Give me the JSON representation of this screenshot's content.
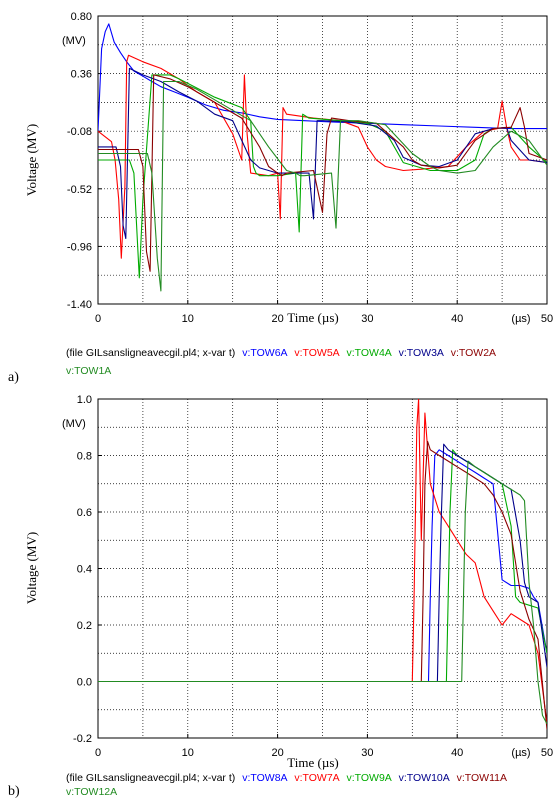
{
  "chart_data": [
    {
      "panel_label": "a)",
      "type": "line",
      "xlabel": "Time (µs)",
      "ylabel": "Voltage (MV)",
      "y_unit": "(MV)",
      "x_unit": "(µs)",
      "xlim": [
        0,
        50
      ],
      "ylim": [
        -1.4,
        0.8
      ],
      "xticks": [
        "0",
        "10",
        "20",
        "30",
        "40",
        "50"
      ],
      "yticks": [
        "0.80",
        "0.36",
        "-0.08",
        "-0.52",
        "-0.96",
        "-1.40"
      ],
      "grid": true,
      "legend_prefix": "(file GILsansligneavecgil.pl4; x-var t)",
      "series": [
        {
          "name": "v:TOW6A",
          "color": "#0000ff",
          "x": [
            0,
            0.4,
            0.8,
            1.2,
            1.8,
            2.5,
            3.2,
            4.0,
            5.0,
            6.0,
            7.0,
            8.5,
            10,
            12,
            14,
            16,
            18,
            20,
            23,
            26,
            30,
            34,
            38,
            42,
            46,
            50
          ],
          "y": [
            -0.08,
            0.55,
            0.68,
            0.74,
            0.6,
            0.52,
            0.45,
            0.38,
            0.34,
            0.3,
            0.26,
            0.22,
            0.18,
            0.12,
            0.08,
            0.06,
            0.03,
            0.01,
            0.0,
            -0.01,
            -0.02,
            -0.03,
            -0.04,
            -0.05,
            -0.06,
            -0.06
          ]
        },
        {
          "name": "v:TOW5A",
          "color": "#ff0000",
          "x": [
            0,
            1.5,
            1.9,
            2.3,
            2.6,
            3.0,
            3.2,
            3.4,
            5,
            7,
            9,
            11,
            13,
            15,
            16,
            16.3,
            16.6,
            17,
            19,
            20,
            20.3,
            20.6,
            21,
            24,
            27,
            29,
            30,
            31,
            32,
            34,
            36,
            39,
            41,
            43,
            44.5,
            45,
            45.5,
            46,
            47,
            48,
            50
          ],
          "y": [
            -0.08,
            -0.16,
            -0.3,
            -0.6,
            -1.05,
            -0.5,
            0.45,
            0.5,
            0.45,
            0.4,
            0.32,
            0.22,
            0.14,
            -0.1,
            -0.3,
            0.35,
            -0.1,
            -0.4,
            -0.42,
            -0.4,
            -0.75,
            0.1,
            0.05,
            0.02,
            0.0,
            -0.05,
            -0.2,
            -0.3,
            -0.35,
            -0.38,
            -0.37,
            -0.35,
            -0.2,
            -0.08,
            -0.06,
            0.15,
            -0.05,
            -0.2,
            -0.3,
            -0.3,
            -0.32
          ]
        },
        {
          "name": "v:TOW4A",
          "color": "#00aa00",
          "x": [
            0,
            3.5,
            4.0,
            4.3,
            4.6,
            5,
            6,
            8,
            9,
            11,
            13,
            16,
            17,
            17.3,
            17.6,
            18,
            20,
            22,
            22.4,
            22.8,
            23.5,
            27,
            30,
            32,
            33,
            34,
            37,
            40,
            42,
            43,
            44,
            46,
            48,
            50
          ],
          "y": [
            -0.3,
            -0.3,
            -0.4,
            -0.8,
            -1.2,
            -0.6,
            0.35,
            0.35,
            0.32,
            0.25,
            0.18,
            0.1,
            0.0,
            -0.35,
            -0.4,
            -0.42,
            -0.42,
            -0.4,
            -0.85,
            0.05,
            0.02,
            0.0,
            -0.02,
            -0.08,
            -0.2,
            -0.32,
            -0.38,
            -0.38,
            -0.3,
            -0.1,
            -0.06,
            -0.05,
            -0.2,
            -0.32
          ]
        },
        {
          "name": "v:TOW3A",
          "color": "#00008b",
          "x": [
            0,
            2.0,
            2.5,
            2.8,
            3.1,
            3.5,
            5,
            7,
            9,
            11,
            13,
            15,
            17,
            18,
            19,
            20,
            22,
            23.5,
            24,
            24.4,
            25,
            28,
            31,
            33,
            34,
            36,
            38,
            40,
            42,
            44,
            45.5,
            46,
            48,
            50
          ],
          "y": [
            -0.2,
            -0.2,
            -0.35,
            -0.8,
            -0.9,
            0.4,
            0.35,
            0.3,
            0.22,
            0.15,
            0.05,
            0.0,
            -0.3,
            -0.36,
            -0.38,
            -0.4,
            -0.4,
            -0.4,
            -0.75,
            0.0,
            0.0,
            -0.01,
            -0.04,
            -0.15,
            -0.28,
            -0.34,
            -0.35,
            -0.3,
            -0.1,
            -0.06,
            -0.05,
            -0.15,
            -0.3,
            -0.32
          ]
        },
        {
          "name": "v:TOW2A",
          "color": "#8b0000",
          "x": [
            0,
            4.5,
            5.0,
            5.4,
            5.8,
            6.2,
            8,
            10,
            12,
            14,
            16,
            18,
            19,
            20,
            20.5,
            21,
            24,
            25,
            25.5,
            26,
            28,
            31,
            34,
            35,
            36,
            38,
            40,
            42,
            44,
            46,
            47,
            47.5,
            48,
            50
          ],
          "y": [
            -0.22,
            -0.22,
            -0.35,
            -1.0,
            -1.15,
            0.35,
            0.32,
            0.26,
            0.18,
            0.1,
            0.02,
            -0.2,
            -0.35,
            -0.4,
            -0.42,
            -0.4,
            -0.38,
            -0.7,
            -0.1,
            0.02,
            0.0,
            -0.02,
            -0.2,
            -0.3,
            -0.34,
            -0.36,
            -0.34,
            -0.15,
            -0.06,
            -0.05,
            0.1,
            -0.05,
            -0.25,
            -0.3
          ]
        },
        {
          "name": "v:TOW1A",
          "color": "#228b22",
          "x": [
            0,
            5.5,
            6.0,
            6.6,
            7.0,
            7.3,
            9,
            11,
            13,
            15,
            17,
            19,
            21,
            22,
            22.5,
            23,
            26,
            26.5,
            27,
            29,
            32,
            35,
            37,
            38,
            40,
            42,
            44,
            46,
            48,
            50
          ],
          "y": [
            -0.25,
            -0.25,
            -0.4,
            -1.05,
            -1.3,
            0.3,
            0.3,
            0.24,
            0.16,
            0.08,
            0.0,
            -0.2,
            -0.38,
            -0.4,
            -0.42,
            -0.42,
            -0.4,
            -0.82,
            0.0,
            0.0,
            -0.03,
            -0.25,
            -0.35,
            -0.38,
            -0.4,
            -0.38,
            -0.2,
            -0.08,
            -0.15,
            -0.34
          ]
        }
      ]
    },
    {
      "panel_label": "b)",
      "type": "line",
      "xlabel": "Time (µs)",
      "ylabel": "Voltage (MV)",
      "y_unit": "(MV)",
      "x_unit": "(µs)",
      "xlim": [
        0,
        50
      ],
      "ylim": [
        -0.2,
        1.0
      ],
      "xticks": [
        "0",
        "10",
        "20",
        "30",
        "40",
        "50"
      ],
      "yticks": [
        "1.0",
        "0.8",
        "0.6",
        "0.4",
        "0.2",
        "0.0",
        "-0.2"
      ],
      "grid": true,
      "legend_prefix": "(file GILsansligneavecgil.pl4; x-var t)",
      "series": [
        {
          "name": "v:TOW8A",
          "color": "#0000ff",
          "x": [
            0,
            36.8,
            37.0,
            37.2,
            37.5,
            38,
            39,
            40,
            41,
            42,
            43,
            44,
            45,
            46,
            47,
            48,
            48.5,
            49,
            50
          ],
          "y": [
            0.0,
            0.0,
            0.3,
            0.55,
            0.8,
            0.82,
            0.8,
            0.78,
            0.76,
            0.74,
            0.72,
            0.7,
            0.36,
            0.34,
            0.34,
            0.33,
            0.3,
            0.28,
            0.1
          ]
        },
        {
          "name": "v:TOW7A",
          "color": "#ff0000",
          "x": [
            0,
            35.0,
            35.2,
            35.5,
            35.7,
            36.0,
            36.4,
            37,
            38,
            39,
            40,
            41,
            42,
            43,
            44,
            45,
            46,
            47,
            48,
            49,
            50
          ],
          "y": [
            0.0,
            0.0,
            0.3,
            0.9,
            1.0,
            0.5,
            0.95,
            0.7,
            0.6,
            0.55,
            0.5,
            0.45,
            0.42,
            0.3,
            0.25,
            0.2,
            0.24,
            0.22,
            0.2,
            0.1,
            -0.15
          ]
        },
        {
          "name": "v:TOW9A",
          "color": "#00aa00",
          "x": [
            0,
            38.8,
            39.0,
            39.2,
            39.5,
            40,
            41,
            42,
            43,
            44,
            45,
            46,
            46.5,
            47,
            48,
            49,
            50
          ],
          "y": [
            0.0,
            0.0,
            0.3,
            0.6,
            0.82,
            0.8,
            0.78,
            0.76,
            0.74,
            0.72,
            0.7,
            0.55,
            0.3,
            0.28,
            0.27,
            0.26,
            0.1
          ]
        },
        {
          "name": "v:TOW10A",
          "color": "#00008b",
          "x": [
            0,
            37.8,
            38.0,
            38.2,
            38.5,
            39,
            40,
            41,
            42,
            43,
            44,
            45,
            46,
            47,
            47.5,
            48,
            49,
            50
          ],
          "y": [
            0.0,
            0.0,
            0.3,
            0.55,
            0.84,
            0.82,
            0.8,
            0.78,
            0.76,
            0.74,
            0.72,
            0.7,
            0.68,
            0.5,
            0.35,
            0.3,
            0.28,
            0.05
          ]
        },
        {
          "name": "v:TOW11A",
          "color": "#8b0000",
          "x": [
            0,
            36.0,
            36.2,
            36.4,
            36.7,
            37,
            38,
            39,
            40,
            41,
            42,
            43,
            44,
            45,
            46,
            47,
            48,
            49,
            50
          ],
          "y": [
            0.0,
            0.0,
            0.3,
            0.7,
            0.85,
            0.82,
            0.8,
            0.78,
            0.76,
            0.74,
            0.72,
            0.7,
            0.66,
            0.6,
            0.52,
            0.32,
            0.22,
            0.15,
            -0.17
          ]
        },
        {
          "name": "v:TOW12A",
          "color": "#228b22",
          "x": [
            0,
            40.5,
            40.7,
            40.9,
            41.2,
            42,
            43,
            44,
            45,
            46,
            47,
            47.5,
            48,
            48.5,
            49,
            49.5,
            50
          ],
          "y": [
            0.0,
            0.0,
            0.3,
            0.6,
            0.78,
            0.76,
            0.74,
            0.72,
            0.7,
            0.68,
            0.66,
            0.64,
            0.35,
            0.2,
            0.0,
            -0.12,
            -0.15
          ]
        }
      ]
    }
  ]
}
